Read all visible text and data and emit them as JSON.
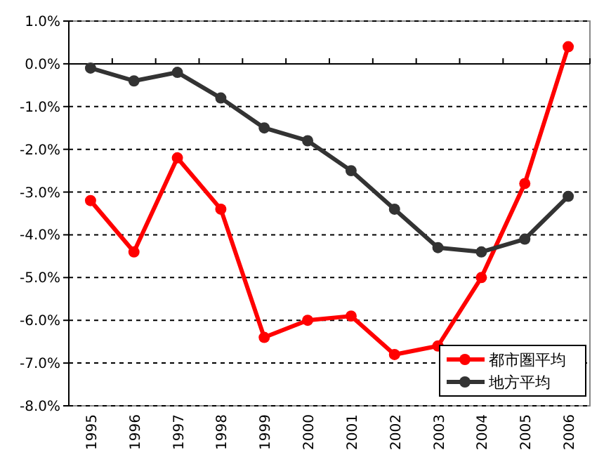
{
  "chart_data": {
    "type": "line",
    "categories": [
      "1995",
      "1996",
      "1997",
      "1998",
      "1999",
      "2000",
      "2001",
      "2002",
      "2003",
      "2004",
      "2005",
      "2006"
    ],
    "series": [
      {
        "name": "都市圏平均",
        "color": "#ff0000",
        "values": [
          -3.2,
          -4.4,
          -2.2,
          -3.4,
          -6.4,
          -6.0,
          -5.9,
          -6.8,
          -6.6,
          -5.0,
          -2.8,
          0.4
        ]
      },
      {
        "name": "地方平均",
        "color": "#333333",
        "values": [
          -0.1,
          -0.4,
          -0.2,
          -0.8,
          -1.5,
          -1.8,
          -2.5,
          -3.4,
          -4.3,
          -4.4,
          -4.1,
          -3.1
        ]
      }
    ],
    "ylim": [
      -8,
      1
    ],
    "yticks": [
      {
        "value": 1,
        "label": "1.0%"
      },
      {
        "value": 0,
        "label": "0.0%"
      },
      {
        "value": -1,
        "label": "-1.0%"
      },
      {
        "value": -2,
        "label": "-2.0%"
      },
      {
        "value": -3,
        "label": "-3.0%"
      },
      {
        "value": -4,
        "label": "-4.0%"
      },
      {
        "value": -5,
        "label": "-5.0%"
      },
      {
        "value": -6,
        "label": "-6.0%"
      },
      {
        "value": -7,
        "label": "-7.0%"
      },
      {
        "value": -8,
        "label": "-8.0%"
      }
    ],
    "grid": "y",
    "legend": "bottom right",
    "marker": "circle",
    "line_style": "solid"
  }
}
